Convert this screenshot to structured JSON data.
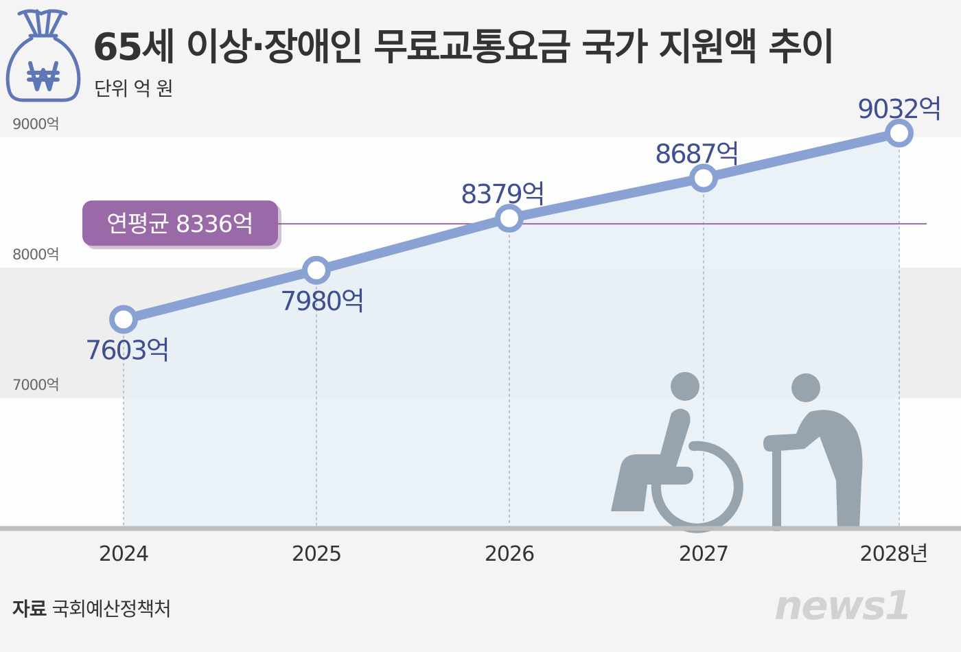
{
  "header": {
    "title": "65세 이상·장애인 무료교통요금 국가 지원액 추이",
    "unit": "단위 억 원"
  },
  "footer": {
    "source_label": "자료",
    "source_text": "국회예산정책처",
    "logo": "news1"
  },
  "icons": [
    "money-bag-icon",
    "wheelchair-user-icon",
    "elderly-with-cane-icon"
  ],
  "colors": {
    "line": "#8aa1d4",
    "area": "#e6eef6",
    "average": "#9a6aa8",
    "label": "#3f4f8f"
  },
  "chart_data": {
    "type": "line",
    "categories": [
      "2024",
      "2025",
      "2026",
      "2027",
      "2028년"
    ],
    "series": [
      {
        "values": [
          7603,
          7980,
          8379,
          8687,
          9032
        ]
      }
    ],
    "data_labels": [
      "7603억",
      "7980억",
      "8379억",
      "8687억",
      "9032억"
    ],
    "y_ticks": [
      {
        "value": 9000,
        "label": "9000억"
      },
      {
        "value": 8000,
        "label": "8000억"
      },
      {
        "value": 7000,
        "label": "7000억"
      }
    ],
    "average": {
      "value": 8336,
      "label": "연평균 8336억"
    },
    "ylim": [
      6000,
      9000
    ],
    "title": "65세 이상·장애인 무료교통요금 국가 지원액 추이",
    "xlabel": "",
    "ylabel": "단위 억 원"
  }
}
